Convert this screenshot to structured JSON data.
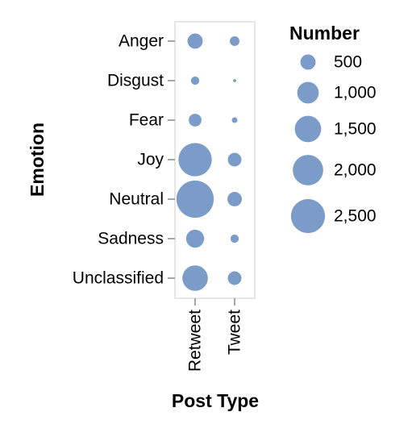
{
  "chart_data": {
    "type": "scatter",
    "title": "",
    "xlabel": "Post Type",
    "ylabel": "Emotion",
    "x_categories": [
      "Retweet",
      "Tweet"
    ],
    "y_categories": [
      "Anger",
      "Disgust",
      "Fear",
      "Joy",
      "Neutral",
      "Sadness",
      "Unclassified"
    ],
    "size_field": "Number",
    "points": [
      {
        "x": "Retweet",
        "y": "Anger",
        "size": 500
      },
      {
        "x": "Retweet",
        "y": "Disgust",
        "size": 150
      },
      {
        "x": "Retweet",
        "y": "Fear",
        "size": 350
      },
      {
        "x": "Retweet",
        "y": "Joy",
        "size": 2400
      },
      {
        "x": "Retweet",
        "y": "Neutral",
        "size": 3000
      },
      {
        "x": "Retweet",
        "y": "Sadness",
        "size": 700
      },
      {
        "x": "Retweet",
        "y": "Unclassified",
        "size": 1400
      },
      {
        "x": "Tweet",
        "y": "Anger",
        "size": 200
      },
      {
        "x": "Tweet",
        "y": "Disgust",
        "size": 20
      },
      {
        "x": "Tweet",
        "y": "Fear",
        "size": 70
      },
      {
        "x": "Tweet",
        "y": "Joy",
        "size": 400
      },
      {
        "x": "Tweet",
        "y": "Neutral",
        "size": 450
      },
      {
        "x": "Tweet",
        "y": "Sadness",
        "size": 150
      },
      {
        "x": "Tweet",
        "y": "Unclassified",
        "size": 400
      }
    ],
    "legend": {
      "title": "Number",
      "values": [
        500,
        1000,
        1500,
        2000,
        2500
      ],
      "labels": [
        "500",
        "1,000",
        "1,500",
        "2,000",
        "2,500"
      ],
      "placement": "right"
    },
    "mark_color": "#7b9cc8",
    "grid": false
  }
}
